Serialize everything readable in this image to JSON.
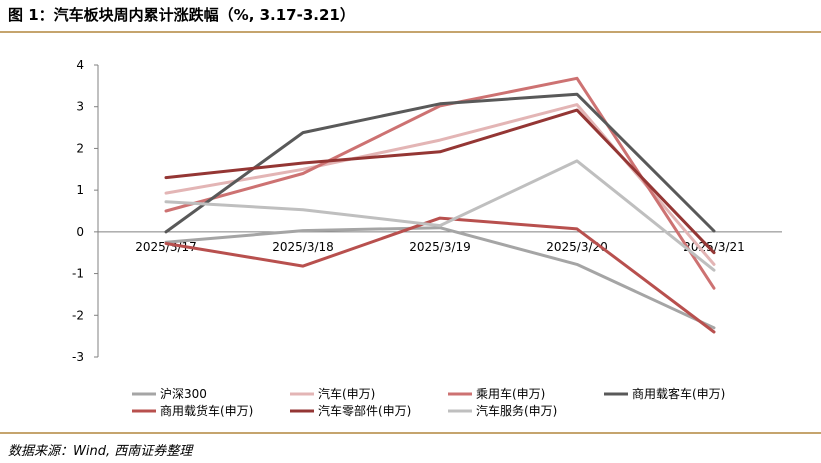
{
  "figure": {
    "title": "图 1：汽车板块周内累计涨跌幅（%, 3.17-3.21）",
    "source": "数据来源：Wind, 西南证券整理"
  },
  "chart_data": {
    "type": "line",
    "title": "",
    "xlabel": "",
    "ylabel": "",
    "categories": [
      "2025/3/17",
      "2025/3/18",
      "2025/3/19",
      "2025/3/20",
      "2025/3/21"
    ],
    "ylim": [
      -3,
      4
    ],
    "yticks": [
      -3,
      -2,
      -1,
      0,
      1,
      2,
      3,
      4
    ],
    "grid": false,
    "legend": "bottom",
    "series": [
      {
        "name": "沪深300",
        "color": "#A5A5A5",
        "values": [
          -0.25,
          0.03,
          0.1,
          -0.78,
          -2.3
        ]
      },
      {
        "name": "汽车(申万)",
        "color": "#E3B5B5",
        "values": [
          0.93,
          1.5,
          2.2,
          3.05,
          -0.78
        ]
      },
      {
        "name": "乘用车(申万)",
        "color": "#CD7272",
        "values": [
          0.5,
          1.4,
          3.02,
          3.68,
          -1.35
        ]
      },
      {
        "name": "商用载客车(申万)",
        "color": "#595959",
        "values": [
          0.0,
          2.38,
          3.07,
          3.3,
          0.02
        ]
      },
      {
        "name": "商用载货车(申万)",
        "color": "#B8504E",
        "values": [
          -0.28,
          -0.82,
          0.33,
          0.07,
          -2.4
        ]
      },
      {
        "name": "汽车零部件(申万)",
        "color": "#943634",
        "values": [
          1.3,
          1.65,
          1.92,
          2.92,
          -0.5
        ]
      },
      {
        "name": "汽车服务(申万)",
        "color": "#BFBFBF",
        "values": [
          0.72,
          0.53,
          0.15,
          1.7,
          -0.92
        ]
      }
    ]
  }
}
